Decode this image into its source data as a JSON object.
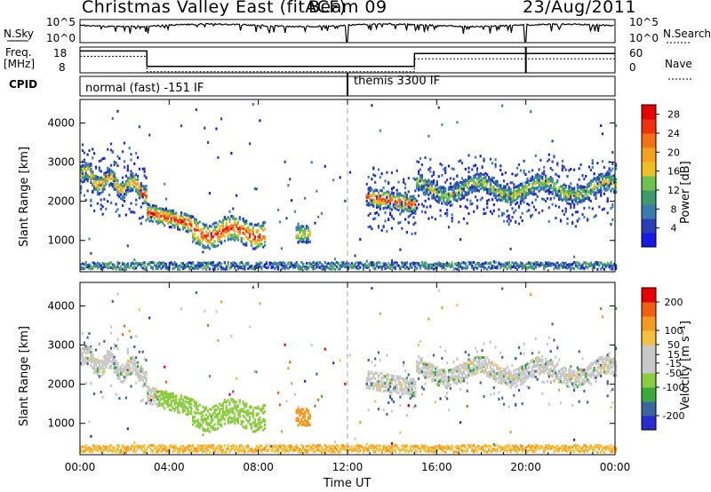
{
  "header": {
    "radar_title": "Christmas Valley East (fitACF)",
    "beam_label": "Beam 09",
    "date": "23/Aug/2011"
  },
  "params_panel": {
    "nsky_label": "N.Sky",
    "nsky_ticks": [
      "10^5",
      "10^0"
    ],
    "nsearch_label": "N.Search",
    "nsearch_ticks": [
      "10^5",
      "10^0"
    ],
    "freq_label": "Freq.",
    "freq_unit": "[MHz]",
    "freq_ticks": [
      "18",
      "8"
    ],
    "nave_label": "Nave",
    "nave_ticks": [
      "60",
      "0"
    ],
    "cpid_label": "CPID",
    "cpid_segments": [
      "normal (fast) -151 IF",
      "themis 3300 IF"
    ]
  },
  "colors": {
    "power_scale": [
      "#1a1ae6",
      "#2a3fb4",
      "#3a7cb0",
      "#3d9a6a",
      "#6cc24a",
      "#f0c020",
      "#f4a020",
      "#f57010",
      "#f23010",
      "#e80000"
    ],
    "velocity_scale": [
      "#e80000",
      "#f06010",
      "#f39a20",
      "#f4c040",
      "#c8c8c8",
      "#c8c8c8",
      "#8ccc40",
      "#3aaa3a",
      "#3a66a0",
      "#2a2ad0"
    ]
  },
  "chart_data": [
    {
      "type": "line",
      "title": "N.Sky / N.Search",
      "x": [
        "00:00",
        "04:00",
        "08:00",
        "12:00",
        "16:00",
        "20:00",
        "00:00"
      ],
      "series": [
        {
          "name": "N.Sky",
          "values": [
            25000,
            20000,
            30000,
            25000,
            22000,
            28000,
            30000
          ]
        }
      ],
      "ylim": [
        1,
        100000
      ]
    },
    {
      "type": "line",
      "title": "Freq. / Nave",
      "x_hours": [
        0,
        3,
        3,
        12,
        12,
        15,
        15,
        20,
        20,
        24
      ],
      "series": [
        {
          "name": "Freq.",
          "values": [
            16.5,
            16.5,
            10.5,
            10.5,
            10.5,
            10.5,
            15.5,
            15.5,
            15.5,
            15.5
          ]
        },
        {
          "name": "Nave",
          "values": [
            18,
            18,
            18,
            18,
            18,
            18,
            18,
            18,
            18,
            18
          ]
        }
      ],
      "ylim": [
        8,
        18
      ]
    },
    {
      "type": "heatmap",
      "title": "Power",
      "xlabel": "Time UT",
      "ylabel": "Slant Range [km]",
      "x_ticks": [
        "00:00",
        "04:00",
        "08:00",
        "12:00",
        "16:00",
        "20:00",
        "00:00"
      ],
      "y_ticks": [
        1000,
        2000,
        3000,
        4000
      ],
      "ylim": [
        200,
        4600
      ],
      "colorbar_label": "Power [dB]",
      "colorbar_ticks": [
        4,
        8,
        12,
        16,
        20,
        24,
        28
      ],
      "colorbar_range": [
        0,
        30
      ]
    },
    {
      "type": "heatmap",
      "title": "Velocity",
      "xlabel": "Time UT",
      "ylabel": "Slant Range [km]",
      "x_ticks": [
        "00:00",
        "04:00",
        "08:00",
        "12:00",
        "16:00",
        "20:00",
        "00:00"
      ],
      "y_ticks": [
        1000,
        2000,
        3000,
        4000
      ],
      "ylim": [
        200,
        4600
      ],
      "colorbar_label": "Velocity [m s⁻¹]",
      "colorbar_ticks": [
        200,
        100,
        50,
        15,
        -15,
        -50,
        -100,
        -200
      ],
      "colorbar_range": [
        -250,
        250
      ]
    }
  ]
}
